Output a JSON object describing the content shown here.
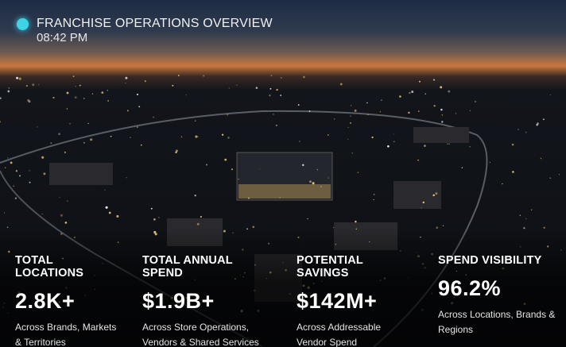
{
  "header": {
    "title": "FRANCHISE OPERATIONS OVERVIEW",
    "time": "08:42 PM"
  },
  "kpis": [
    {
      "label": "TOTAL LOCATIONS",
      "value": "2.8K+",
      "description": "Across Brands, Markets & Territories"
    },
    {
      "label": "TOTAL ANNUAL SPEND",
      "value": "$1.9B+",
      "description": "Across Store Operations, Vendors & Shared Services"
    },
    {
      "label": "POTENTIAL SAVINGS",
      "value": "$142M+",
      "description": "Across Addressable Vendor Spend"
    },
    {
      "label": "SPEND VISIBILITY",
      "value": "96.2%",
      "description": "Across Locations, Brands & Regions"
    }
  ]
}
